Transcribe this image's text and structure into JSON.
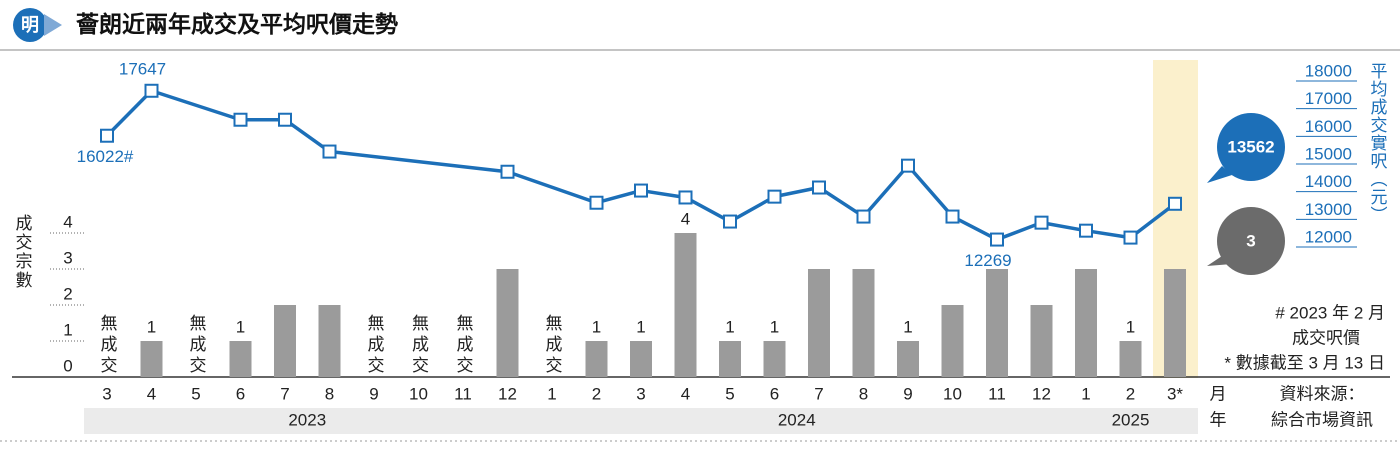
{
  "chart_data": {
    "type": "bar_line",
    "logo": "明",
    "title": "薈朗近兩年成交及平均呎價走勢",
    "y_label": "成交宗數",
    "y2_label": "平均成交實呎（元）",
    "x_unit_month": "月",
    "x_unit_year": "年",
    "year_groups": [
      "2023",
      "2024",
      "2025"
    ],
    "categories": [
      "3",
      "4",
      "5",
      "6",
      "7",
      "8",
      "9",
      "10",
      "11",
      "12",
      "1",
      "2",
      "3",
      "4",
      "5",
      "6",
      "7",
      "8",
      "9",
      "10",
      "11",
      "12",
      "1",
      "2",
      "3*"
    ],
    "ylim": [
      0,
      4
    ],
    "yticks": [
      0,
      1,
      2,
      3,
      4
    ],
    "y2lim": [
      12000,
      18000
    ],
    "y2ticks": [
      12000,
      13000,
      14000,
      15000,
      16000,
      17000,
      18000
    ],
    "series": [
      {
        "name": "成交宗數",
        "type": "bar",
        "color": "#9b9b9b",
        "values": [
          0,
          1,
          0,
          1,
          2,
          2,
          0,
          0,
          0,
          3,
          0,
          1,
          1,
          4,
          1,
          1,
          3,
          3,
          1,
          2,
          3,
          2,
          3,
          1,
          3
        ],
        "value_labels": [
          "無成交",
          "1",
          "無成交",
          "1",
          null,
          null,
          "無成交",
          "無成交",
          "無成交",
          null,
          "無成交",
          "1",
          "1",
          "4",
          "1",
          "1",
          null,
          null,
          "1",
          null,
          null,
          null,
          null,
          "1",
          null
        ]
      },
      {
        "name": "平均成交實呎",
        "type": "line",
        "axis": "y2",
        "color": "#1c6fb8",
        "values": [
          16022,
          17647,
          null,
          16600,
          16600,
          15450,
          null,
          null,
          null,
          14720,
          null,
          13600,
          14040,
          13790,
          12920,
          13820,
          14150,
          13100,
          14940,
          13100,
          12269,
          12880,
          12590,
          12340,
          13562
        ],
        "value_labels": [
          "16022#",
          "17647",
          null,
          null,
          null,
          null,
          null,
          null,
          null,
          null,
          null,
          null,
          null,
          null,
          null,
          null,
          null,
          null,
          null,
          null,
          "12269",
          null,
          null,
          null,
          null
        ]
      }
    ],
    "footnotes": [
      "# 2023 年 2 月",
      "成交呎價",
      "* 數據截至 3 月 13 日"
    ],
    "source": [
      "資料來源：",
      "綜合市場資訊"
    ]
  }
}
